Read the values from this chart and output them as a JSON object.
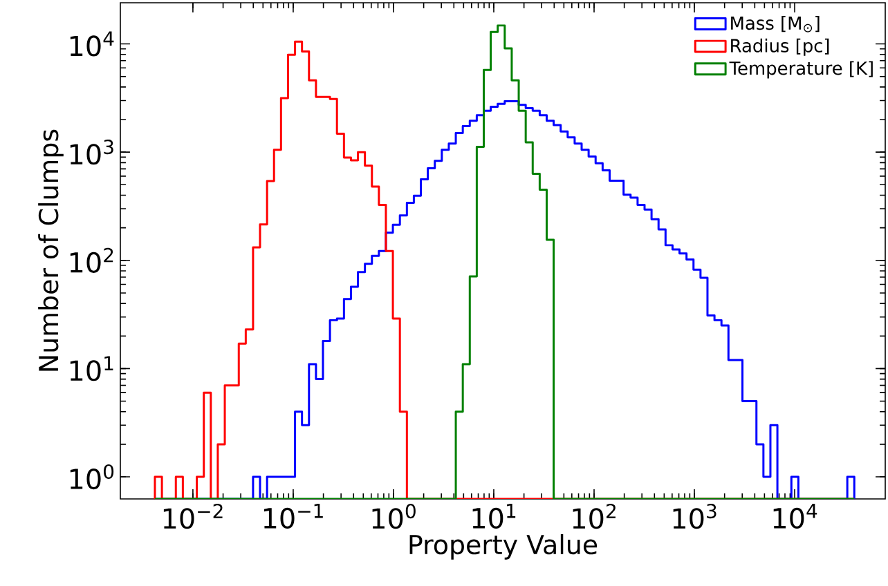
{
  "chart_data": {
    "type": "histogram",
    "xlabel": "Property Value",
    "ylabel": "Number of Clumps",
    "log": "xy",
    "legend": "top right",
    "xlim": [
      0.00189,
      80000
    ],
    "ylim": [
      0.625,
      24000
    ],
    "xticks": [
      {
        "value": 0.01,
        "label": "10$^{−2}$"
      },
      {
        "value": 0.1,
        "label": "10$^{−1}$"
      },
      {
        "value": 1,
        "label": "10$^{0}$"
      },
      {
        "value": 10,
        "label": "10$^{1}$"
      },
      {
        "value": 100,
        "label": "10$^{2}$"
      },
      {
        "value": 1000,
        "label": "10$^{3}$"
      },
      {
        "value": 10000,
        "label": "10$^{4}$"
      }
    ],
    "yticks": [
      {
        "value": 1,
        "label": "10$^{0}$"
      },
      {
        "value": 10,
        "label": "10$^{1}$"
      },
      {
        "value": 100,
        "label": "10$^{2}$"
      },
      {
        "value": 1000,
        "label": "10$^{3}$"
      },
      {
        "value": 10000,
        "label": "10$^{4}$"
      }
    ],
    "bins": [
      0.00418,
      0.00491,
      0.00576,
      0.00676,
      0.00794,
      0.00932,
      0.01094,
      0.01285,
      0.01509,
      0.01771,
      0.0208,
      0.02442,
      0.02867,
      0.03366,
      0.0398,
      0.0467,
      0.0549,
      0.0644,
      0.0756,
      0.0888,
      0.1043,
      0.1224,
      0.1437,
      0.1687,
      0.1981,
      0.2326,
      0.2731,
      0.3207,
      0.3765,
      0.442,
      0.519,
      0.6093,
      0.7154,
      0.84,
      0.9862,
      1.158,
      1.36,
      1.596,
      1.874,
      2.2,
      2.583,
      3.033,
      3.561,
      4.181,
      4.909,
      5.764,
      6.767,
      7.946,
      9.329,
      10.95,
      12.86,
      15.1,
      17.73,
      20.82,
      24.44,
      28.7,
      33.69,
      39.56,
      46.45,
      54.53,
      64.03,
      75.17,
      88.26,
      103.6,
      121.7,
      142.9,
      167.7,
      196.9,
      231.2,
      271.5,
      318.7,
      374.2,
      439.4,
      515.9,
      605.7,
      711.1,
      835,
      980.3,
      1151,
      1351,
      1587,
      1863,
      2187,
      2568,
      3015,
      3540,
      4157,
      4880,
      5730,
      6728,
      7899,
      9274,
      10890,
      12780,
      15010,
      17620,
      20690,
      24290,
      28520,
      33490,
      39320
    ],
    "series": [
      {
        "name": "Mass [M$_{⊙}$]",
        "color": "#0000ff",
        "values": [
          null,
          null,
          null,
          null,
          null,
          null,
          null,
          null,
          null,
          null,
          null,
          null,
          null,
          null,
          1,
          null,
          1,
          1,
          1,
          1,
          4,
          3,
          11,
          8,
          18,
          28,
          29,
          44,
          57,
          78,
          93,
          110,
          122,
          180,
          213,
          260,
          340,
          395,
          560,
          710,
          830,
          1050,
          1200,
          1500,
          1740,
          1950,
          2190,
          2410,
          2630,
          2800,
          2950,
          2950,
          2730,
          2550,
          2410,
          2190,
          1950,
          1780,
          1550,
          1370,
          1200,
          1050,
          910,
          790,
          680,
          545,
          545,
          405,
          380,
          325,
          295,
          240,
          193,
          138,
          126,
          116,
          102,
          82,
          69,
          31,
          28,
          25,
          12,
          12,
          5,
          5,
          2,
          1,
          3,
          null,
          null,
          1,
          null,
          null,
          null,
          null,
          null,
          null,
          null,
          1
        ]
      },
      {
        "name": "Radius [pc]",
        "color": "#ff0000",
        "values": [
          1,
          null,
          null,
          1,
          null,
          null,
          1,
          6,
          null,
          2,
          7,
          7,
          17,
          23,
          132,
          215,
          540,
          1050,
          3160,
          7950,
          10500,
          8500,
          4600,
          3240,
          3240,
          3100,
          1480,
          890,
          840,
          1000,
          750,
          480,
          325,
          122,
          29,
          4,
          null,
          null,
          null,
          null,
          null,
          null,
          null,
          null,
          null,
          null,
          null,
          null,
          null,
          null,
          null,
          null,
          null,
          null,
          null,
          null,
          null,
          null,
          null,
          null,
          null,
          null,
          null,
          null,
          null,
          null,
          null,
          null,
          null,
          null,
          null,
          null,
          null,
          null,
          null,
          null,
          null,
          null,
          null,
          null,
          null,
          null,
          null,
          null,
          null,
          null,
          null,
          null,
          null,
          null,
          null,
          null,
          null,
          null,
          null,
          null,
          null,
          null,
          null,
          null
        ]
      },
      {
        "name": "Temperature [K]",
        "color": "#008000",
        "values": [
          null,
          null,
          null,
          null,
          null,
          null,
          null,
          null,
          null,
          null,
          null,
          null,
          null,
          null,
          null,
          null,
          null,
          null,
          null,
          null,
          null,
          null,
          null,
          null,
          null,
          null,
          null,
          null,
          null,
          null,
          null,
          null,
          null,
          null,
          null,
          null,
          null,
          null,
          null,
          null,
          null,
          null,
          null,
          4,
          11,
          71,
          1120,
          5750,
          12900,
          14800,
          9100,
          4600,
          2410,
          1230,
          630,
          450,
          155,
          null,
          null,
          null,
          null,
          null,
          null,
          null,
          null,
          null,
          null,
          null,
          null,
          null,
          null,
          null,
          null,
          null,
          null,
          null,
          null,
          null,
          null,
          null,
          null,
          null,
          null,
          null,
          null,
          null,
          null,
          null,
          null,
          null,
          null,
          null,
          null,
          null,
          null,
          null,
          null,
          null,
          null,
          null
        ]
      }
    ]
  }
}
